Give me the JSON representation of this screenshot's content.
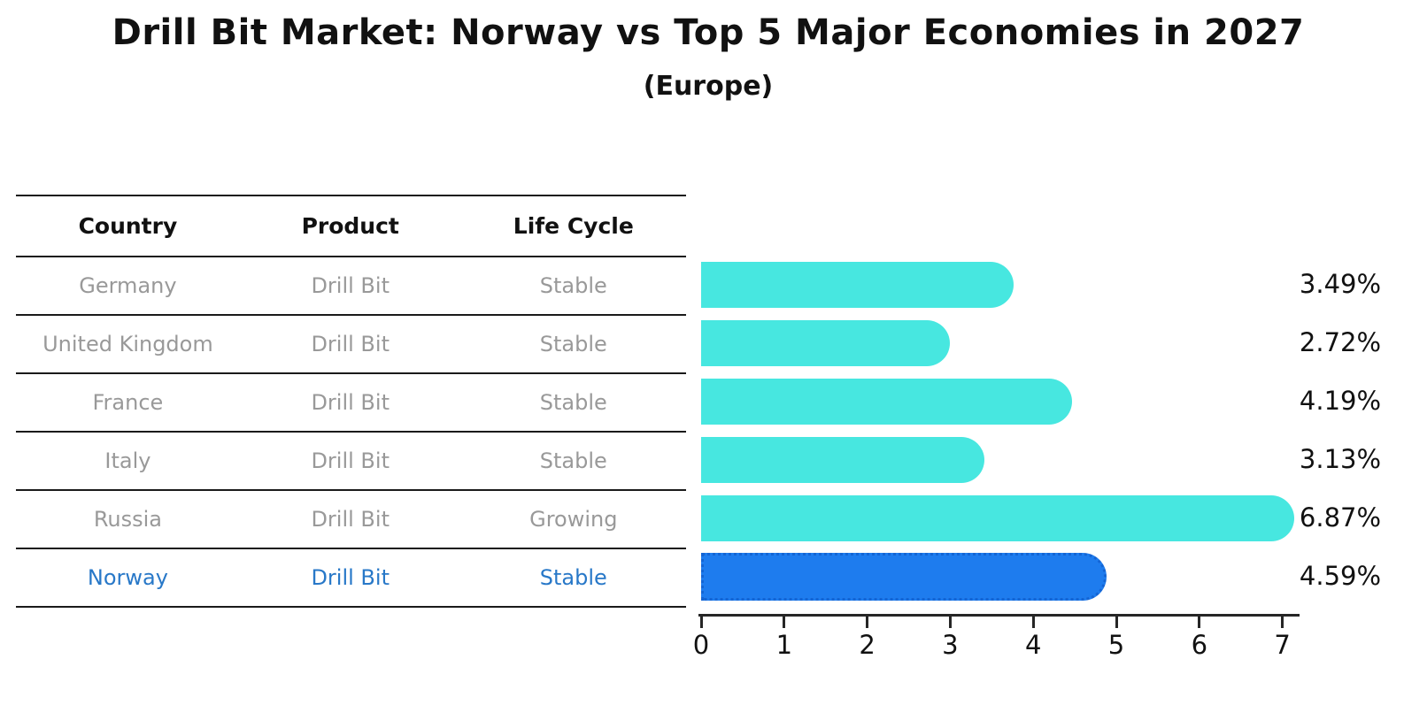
{
  "title": "Drill Bit Market: Norway vs Top 5 Major Economies in 2027",
  "subtitle": "(Europe)",
  "table": {
    "headers": [
      "Country",
      "Product",
      "Life Cycle"
    ],
    "rows": [
      {
        "country": "Germany",
        "product": "Drill Bit",
        "life_cycle": "Stable",
        "highlight": false
      },
      {
        "country": "United Kingdom",
        "product": "Drill Bit",
        "life_cycle": "Stable",
        "highlight": false
      },
      {
        "country": "France",
        "product": "Drill Bit",
        "life_cycle": "Stable",
        "highlight": false
      },
      {
        "country": "Italy",
        "product": "Drill Bit",
        "life_cycle": "Stable",
        "highlight": false
      },
      {
        "country": "Russia",
        "product": "Drill Bit",
        "life_cycle": "Growing",
        "highlight": false
      },
      {
        "country": "Norway",
        "product": "Drill Bit",
        "life_cycle": "Stable",
        "highlight": true
      }
    ]
  },
  "chart_data": {
    "type": "bar",
    "orientation": "horizontal",
    "title": "Drill Bit Market: Norway vs Top 5 Major Economies in 2027",
    "subtitle": "(Europe)",
    "categories": [
      "Germany",
      "United Kingdom",
      "France",
      "Italy",
      "Russia",
      "Norway"
    ],
    "values": [
      3.49,
      2.72,
      4.19,
      3.13,
      6.87,
      4.59
    ],
    "value_labels": [
      "3.49%",
      "2.72%",
      "4.19%",
      "3.13%",
      "6.87%",
      "4.59%"
    ],
    "xlabel": "",
    "ylabel": "",
    "xlim": [
      0,
      7.2
    ],
    "x_ticks": [
      "0",
      "1",
      "2",
      "3",
      "4",
      "5",
      "6",
      "7"
    ],
    "grid": false,
    "legend": "none",
    "highlight_index": 5,
    "bar_color": "#47E7E0",
    "highlight_color": "#1E7CEE",
    "highlight_text_color": "#2878C8",
    "text_color": "#999999",
    "label_color": "#111111"
  }
}
